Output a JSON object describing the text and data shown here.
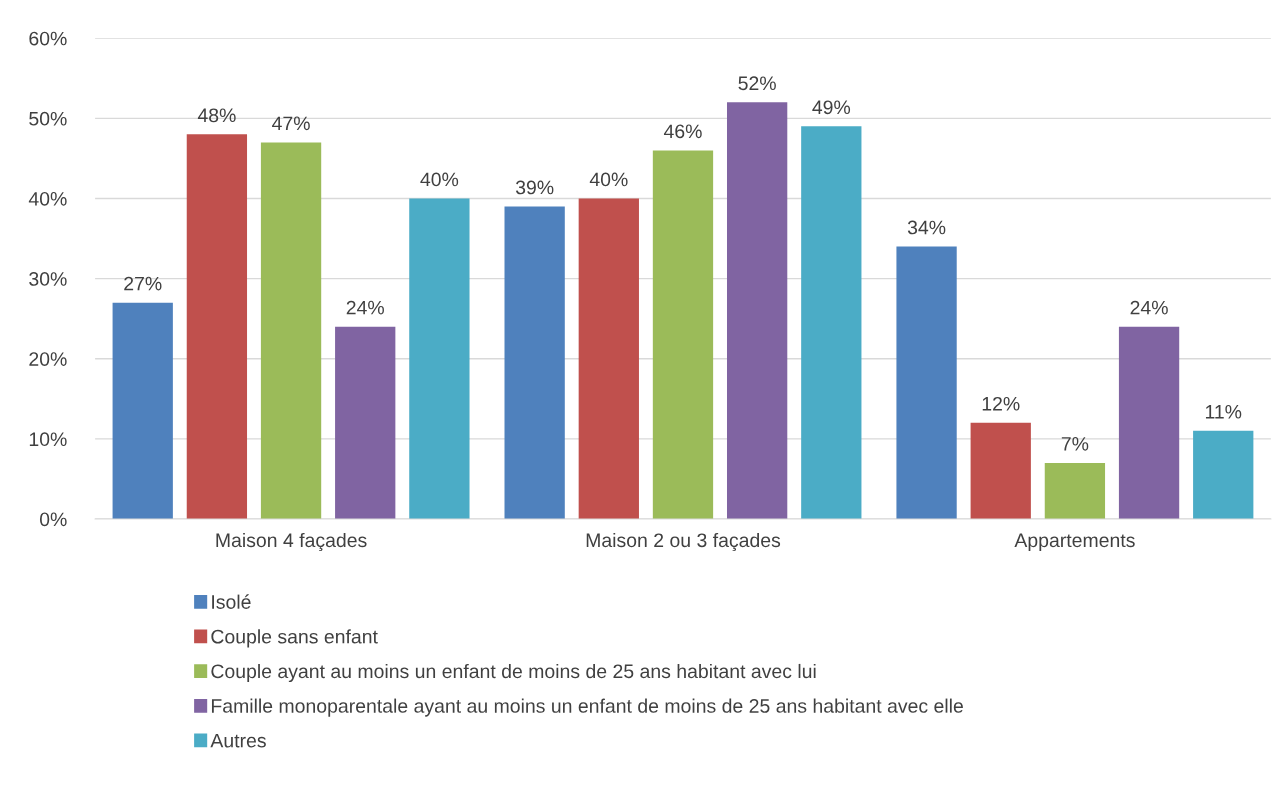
{
  "chart_data": {
    "type": "bar",
    "categories": [
      "Maison 4 façades",
      "Maison 2 ou 3 façades",
      "Appartements"
    ],
    "series": [
      {
        "name": "Isolé",
        "color": "#4f81bd",
        "values": [
          27,
          39,
          34
        ],
        "value_labels": [
          "27%",
          "39%",
          "34%"
        ]
      },
      {
        "name": "Couple sans enfant",
        "color": "#c0504d",
        "values": [
          48,
          40,
          12
        ],
        "value_labels": [
          "48%",
          "40%",
          "12%"
        ]
      },
      {
        "name": "Couple ayant au moins un enfant de moins de 25 ans habitant avec lui",
        "color": "#9bbb59",
        "values": [
          47,
          46,
          7
        ],
        "value_labels": [
          "47%",
          "46%",
          "7%"
        ]
      },
      {
        "name": "Famille monoparentale ayant au moins un enfant de moins de 25 ans habitant avec elle",
        "color": "#8064a2",
        "values": [
          24,
          52,
          24
        ],
        "value_labels": [
          "24%",
          "52%",
          "24%"
        ]
      },
      {
        "name": "Autres",
        "color": "#4bacc6",
        "values": [
          40,
          49,
          11
        ],
        "value_labels": [
          "40%",
          "49%",
          "11%"
        ]
      }
    ],
    "ylim": [
      0,
      60
    ],
    "yticks": [
      {
        "value": 0,
        "label": "0%"
      },
      {
        "value": 10,
        "label": "10%"
      },
      {
        "value": 20,
        "label": "20%"
      },
      {
        "value": 30,
        "label": "30%"
      },
      {
        "value": 40,
        "label": "40%"
      },
      {
        "value": 50,
        "label": "50%"
      },
      {
        "value": 60,
        "label": "60%"
      }
    ],
    "grid": "y",
    "legend": "bottom"
  }
}
